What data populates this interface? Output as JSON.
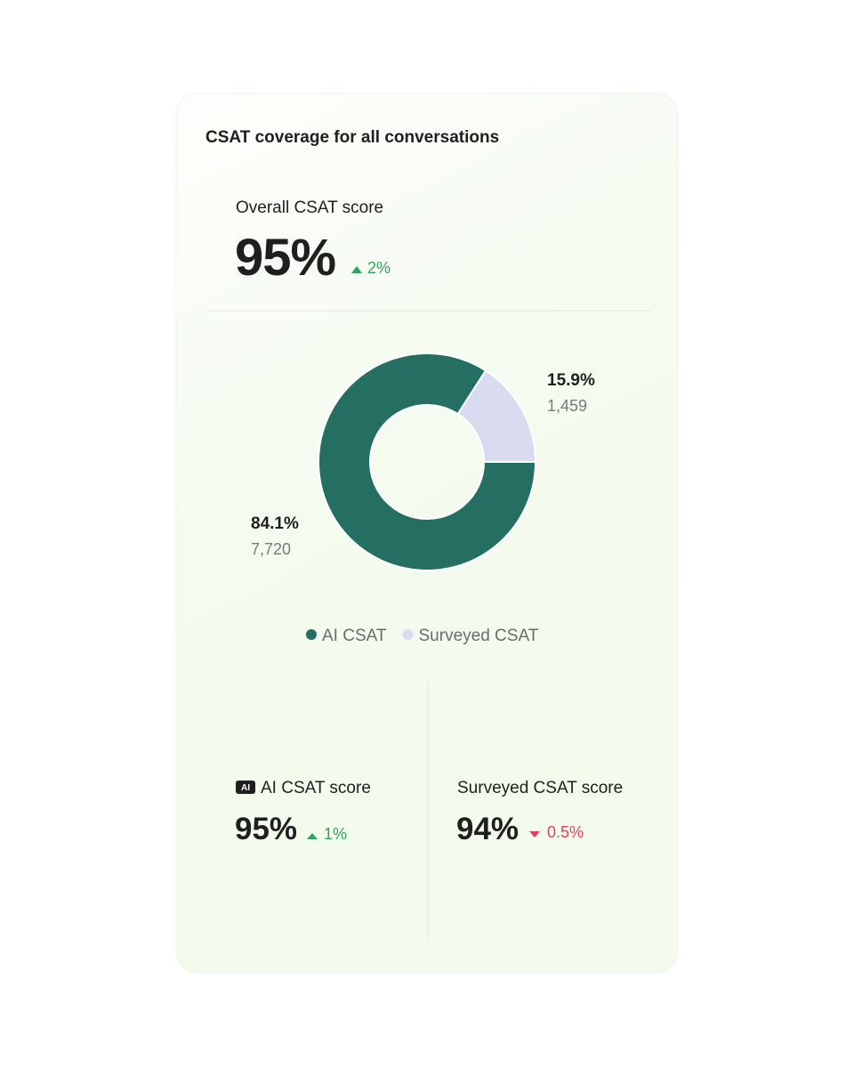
{
  "card": {
    "title": "CSAT coverage for all conversations"
  },
  "overall": {
    "label": "Overall CSAT score",
    "value": "95%",
    "change": "2%"
  },
  "chart_data": {
    "type": "donut",
    "categories": [
      "AI CSAT",
      "Surveyed CSAT"
    ],
    "values": [
      84.1,
      15.9
    ],
    "value_labels": [
      "84.1%",
      "15.9%"
    ],
    "counts": [
      "7,720",
      "1,459"
    ],
    "colors": [
      "#256f62",
      "#d9dbf1"
    ]
  },
  "ai_score": {
    "badge": "AI",
    "label": "AI CSAT score",
    "value": "95%",
    "change": "1%"
  },
  "surveyed_score": {
    "label": "Surveyed CSAT score",
    "value": "94%",
    "change": "0.5%"
  }
}
